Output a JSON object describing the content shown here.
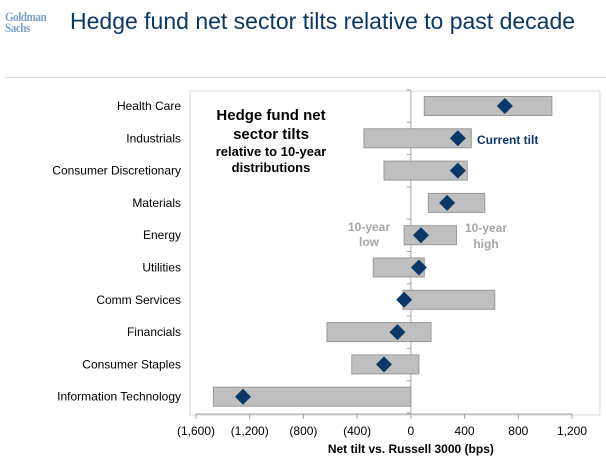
{
  "header": {
    "logo": "Goldman Sachs",
    "logo_line1": "Goldman",
    "logo_line2": "Sachs",
    "title": "Hedge fund net sector tilts relative to past decade"
  },
  "colors": {
    "bar": "#bfbfbf",
    "bar_border": "#999999",
    "marker": "#0b3866",
    "title": "#0b3866",
    "annotation_gray": "#a6a6a6"
  },
  "chart_data": {
    "type": "range-bar-with-marker",
    "xlabel": "Net tilt vs. Russell 3000 (bps)",
    "xlim": [
      -1600,
      1200
    ],
    "xticks": [
      -1600,
      -1200,
      -800,
      -400,
      0,
      400,
      800,
      1200
    ],
    "xtick_labels": [
      "(1,600)",
      "(1,200)",
      "(800)",
      "(400)",
      "0",
      "400",
      "800",
      "1,200"
    ],
    "categories": [
      "Health Care",
      "Industrials",
      "Consumer Discretionary",
      "Materials",
      "Energy",
      "Utilities",
      "Comm Services",
      "Financials",
      "Consumer Staples",
      "Information Technology"
    ],
    "low": [
      100,
      -350,
      -200,
      130,
      -50,
      -280,
      -60,
      -625,
      -440,
      -1470
    ],
    "high": [
      1050,
      450,
      420,
      550,
      340,
      100,
      625,
      150,
      60,
      0
    ],
    "current": [
      700,
      350,
      350,
      270,
      75,
      60,
      -50,
      -100,
      -200,
      -1250
    ],
    "annotations": {
      "box_line1": "Hedge fund net",
      "box_line2": "sector tilts",
      "box_line3": "relative to 10-year",
      "box_line4": "distributions",
      "current": "Current tilt",
      "low_line1": "10-year",
      "low_line2": "low",
      "high_line1": "10-year",
      "high_line2": "high"
    },
    "grid": false
  }
}
